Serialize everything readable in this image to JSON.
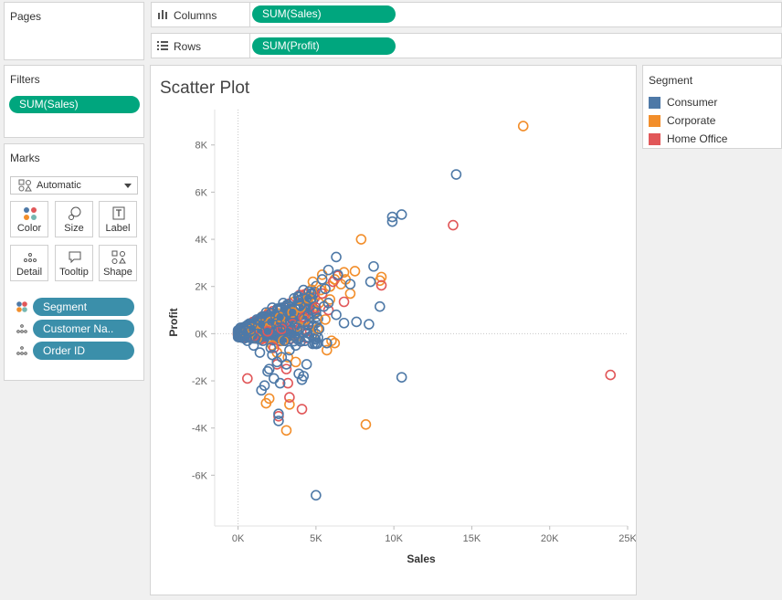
{
  "pages": {
    "title": "Pages"
  },
  "columns_shelf": {
    "label": "Columns",
    "pill": "SUM(Sales)"
  },
  "rows_shelf": {
    "label": "Rows",
    "pill": "SUM(Profit)"
  },
  "filters": {
    "title": "Filters",
    "pill": "SUM(Sales)"
  },
  "marks": {
    "title": "Marks",
    "mark_type": "Automatic",
    "buttons": {
      "color": "Color",
      "size": "Size",
      "label": "Label",
      "detail": "Detail",
      "tooltip": "Tooltip",
      "shape": "Shape"
    },
    "fields": [
      "Segment",
      "Customer Na..",
      "Order ID"
    ]
  },
  "legend": {
    "title": "Segment",
    "items": [
      {
        "name": "Consumer",
        "color": "#4e79a7"
      },
      {
        "name": "Corporate",
        "color": "#f28e2b"
      },
      {
        "name": "Home Office",
        "color": "#e15759"
      }
    ]
  },
  "chart_data": {
    "type": "scatter",
    "title": "Scatter Plot",
    "xlabel": "Sales",
    "ylabel": "Profit",
    "xlim": [
      -1500,
      25000
    ],
    "ylim": [
      -8000,
      9500
    ],
    "x_ticks": [
      {
        "v": 0,
        "t": "0K"
      },
      {
        "v": 5000,
        "t": "5K"
      },
      {
        "v": 10000,
        "t": "10K"
      },
      {
        "v": 15000,
        "t": "15K"
      },
      {
        "v": 20000,
        "t": "20K"
      },
      {
        "v": 25000,
        "t": "25K"
      }
    ],
    "y_ticks": [
      {
        "v": -6000,
        "t": "-6K"
      },
      {
        "v": -4000,
        "t": "-4K"
      },
      {
        "v": -2000,
        "t": "-2K"
      },
      {
        "v": 0,
        "t": "0K"
      },
      {
        "v": 2000,
        "t": "2K"
      },
      {
        "v": 4000,
        "t": "4K"
      },
      {
        "v": 6000,
        "t": "6K"
      },
      {
        "v": 8000,
        "t": "8K"
      }
    ],
    "marker": "open-circle",
    "grid": false,
    "zero_lines": true,
    "series": [
      {
        "name": "Consumer",
        "color": "#4e79a7",
        "points": [
          [
            14000,
            6750
          ],
          [
            9900,
            4950
          ],
          [
            10500,
            5050
          ],
          [
            9900,
            4750
          ],
          [
            8700,
            2850
          ],
          [
            6300,
            3250
          ],
          [
            5800,
            2700
          ],
          [
            8500,
            2200
          ],
          [
            7200,
            2100
          ],
          [
            9100,
            1150
          ],
          [
            5400,
            2300
          ],
          [
            6400,
            2500
          ],
          [
            5600,
            1900
          ],
          [
            5500,
            1150
          ],
          [
            6300,
            800
          ],
          [
            8400,
            400
          ],
          [
            7600,
            500
          ],
          [
            6800,
            450
          ],
          [
            4700,
            1500
          ],
          [
            5800,
            1300
          ],
          [
            5000,
            900
          ],
          [
            4500,
            350
          ],
          [
            5200,
            200
          ],
          [
            5700,
            -400
          ],
          [
            4400,
            -1300
          ],
          [
            4200,
            -1800
          ],
          [
            4100,
            -1950
          ],
          [
            3900,
            -1700
          ],
          [
            10500,
            -1850
          ],
          [
            5000,
            -6850
          ],
          [
            2600,
            -3400
          ],
          [
            2600,
            -3700
          ],
          [
            1500,
            -2400
          ],
          [
            1700,
            -2200
          ],
          [
            2700,
            -2100
          ],
          [
            2000,
            -1500
          ],
          [
            2500,
            -1200
          ],
          [
            3300,
            -700
          ],
          [
            3700,
            -500
          ],
          [
            3000,
            -300
          ],
          [
            3500,
            600
          ],
          [
            3900,
            1400
          ],
          [
            4200,
            1850
          ],
          [
            2900,
            1300
          ],
          [
            2200,
            1100
          ],
          [
            1800,
            900
          ],
          [
            1500,
            700
          ],
          [
            1200,
            600
          ],
          [
            900,
            400
          ],
          [
            700,
            200
          ],
          [
            500,
            100
          ],
          [
            300,
            50
          ],
          [
            1000,
            -500
          ],
          [
            1400,
            -800
          ],
          [
            2200,
            -900
          ],
          [
            2800,
            -1000
          ],
          [
            600,
            -300
          ],
          [
            400,
            -200
          ],
          [
            1900,
            300
          ],
          [
            2500,
            500
          ],
          [
            3200,
            900
          ],
          [
            4000,
            1200
          ],
          [
            4700,
            1700
          ],
          [
            3600,
            1500
          ],
          [
            2400,
            750
          ],
          [
            1300,
            350
          ],
          [
            800,
            100
          ],
          [
            200,
            -100
          ],
          [
            150,
            250
          ],
          [
            1100,
            -200
          ],
          [
            1600,
            -300
          ],
          [
            3400,
            150
          ],
          [
            3800,
            250
          ],
          [
            4500,
            800
          ],
          [
            2100,
            -600
          ],
          [
            3100,
            -1300
          ],
          [
            2300,
            -1900
          ],
          [
            1900,
            -1600
          ]
        ]
      },
      {
        "name": "Corporate",
        "color": "#f28e2b",
        "points": [
          [
            18300,
            8800
          ],
          [
            7900,
            4000
          ],
          [
            7500,
            2650
          ],
          [
            6800,
            2600
          ],
          [
            9200,
            2400
          ],
          [
            9100,
            2250
          ],
          [
            6600,
            2100
          ],
          [
            5900,
            2000
          ],
          [
            5300,
            1850
          ],
          [
            5900,
            1450
          ],
          [
            7200,
            1700
          ],
          [
            6900,
            2300
          ],
          [
            5600,
            600
          ],
          [
            5100,
            200
          ],
          [
            6000,
            -300
          ],
          [
            6200,
            -400
          ],
          [
            5700,
            -700
          ],
          [
            8200,
            -3850
          ],
          [
            3100,
            -4100
          ],
          [
            3300,
            -3000
          ],
          [
            2000,
            -2750
          ],
          [
            1800,
            -2950
          ],
          [
            3700,
            -1200
          ],
          [
            3200,
            -1000
          ],
          [
            2500,
            -800
          ],
          [
            4000,
            1100
          ],
          [
            4500,
            1500
          ],
          [
            5200,
            1300
          ],
          [
            3500,
            900
          ],
          [
            2700,
            700
          ],
          [
            1500,
            400
          ],
          [
            900,
            200
          ],
          [
            500,
            80
          ],
          [
            4800,
            2200
          ],
          [
            5400,
            2500
          ],
          [
            6200,
            2300
          ],
          [
            2200,
            -500
          ],
          [
            2900,
            -300
          ],
          [
            4300,
            600
          ],
          [
            3800,
            300
          ],
          [
            1200,
            -200
          ],
          [
            2100,
            500
          ]
        ]
      },
      {
        "name": "Home Office",
        "color": "#e15759",
        "points": [
          [
            13800,
            4600
          ],
          [
            9200,
            2050
          ],
          [
            6400,
            2450
          ],
          [
            6100,
            2200
          ],
          [
            23900,
            -1750
          ],
          [
            4100,
            -3200
          ],
          [
            2600,
            -3500
          ],
          [
            3300,
            -2700
          ],
          [
            3200,
            -2100
          ],
          [
            3100,
            -1500
          ],
          [
            600,
            -1900
          ],
          [
            2500,
            -1300
          ],
          [
            5000,
            1100
          ],
          [
            5800,
            1000
          ],
          [
            4200,
            700
          ],
          [
            3500,
            400
          ],
          [
            2800,
            200
          ],
          [
            1900,
            100
          ],
          [
            1000,
            -100
          ],
          [
            6800,
            1350
          ],
          [
            5400,
            1700
          ],
          [
            2300,
            -600
          ]
        ]
      }
    ]
  }
}
